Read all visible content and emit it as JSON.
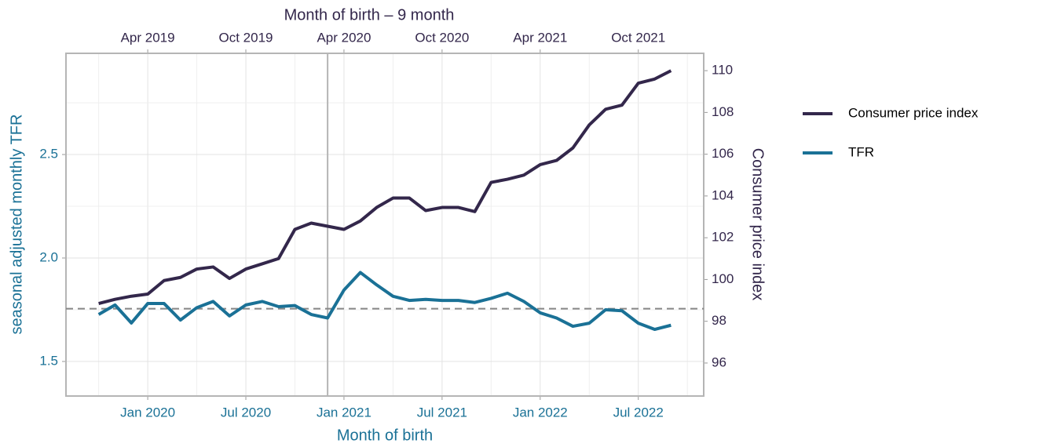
{
  "chart_data": {
    "type": "line",
    "x_title": "Month of birth",
    "x2_title": "Month of birth – 9 month",
    "y_title": "seasonal adjusted monthly TFR",
    "y2_title": "Consumer price index",
    "x": [
      "2019-10",
      "2019-11",
      "2019-12",
      "2020-01",
      "2020-02",
      "2020-03",
      "2020-04",
      "2020-05",
      "2020-06",
      "2020-07",
      "2020-08",
      "2020-09",
      "2020-10",
      "2020-11",
      "2020-12",
      "2021-01",
      "2021-02",
      "2021-03",
      "2021-04",
      "2021-05",
      "2021-06",
      "2021-07",
      "2021-08",
      "2021-09",
      "2021-10",
      "2021-11",
      "2021-12",
      "2022-01",
      "2022-02",
      "2022-03",
      "2022-04",
      "2022-05",
      "2022-06",
      "2022-07",
      "2022-08",
      "2022-09"
    ],
    "series": [
      {
        "name": "Consumer price index",
        "color": "#33274b",
        "axis": "y2",
        "values": [
          98.85,
          99.05,
          99.2,
          99.3,
          99.95,
          100.1,
          100.5,
          100.6,
          100.05,
          100.5,
          100.75,
          101.0,
          102.4,
          102.7,
          102.55,
          102.4,
          102.8,
          103.45,
          103.9,
          103.9,
          103.3,
          103.45,
          103.45,
          103.25,
          104.65,
          104.8,
          105.0,
          105.5,
          105.7,
          106.3,
          107.4,
          108.15,
          108.35,
          109.4,
          109.6,
          110.0
        ]
      },
      {
        "name": "TFR",
        "color": "#1a7196",
        "values": [
          1.727,
          1.773,
          1.686,
          1.78,
          1.78,
          1.7,
          1.76,
          1.79,
          1.72,
          1.773,
          1.79,
          1.765,
          1.77,
          1.727,
          1.71,
          1.845,
          1.93,
          1.87,
          1.815,
          1.795,
          1.8,
          1.795,
          1.795,
          1.785,
          1.805,
          1.83,
          1.79,
          1.735,
          1.71,
          1.67,
          1.685,
          1.75,
          1.745,
          1.685,
          1.655,
          1.675
        ]
      }
    ],
    "xlim": [
      "2019-08",
      "2022-11"
    ],
    "xticks": [
      {
        "value": "2020-01",
        "label": "Jan 2020"
      },
      {
        "value": "2020-07",
        "label": "Jul 2020"
      },
      {
        "value": "2021-01",
        "label": "Jan 2021"
      },
      {
        "value": "2021-07",
        "label": "Jul 2021"
      },
      {
        "value": "2022-01",
        "label": "Jan 2022"
      },
      {
        "value": "2022-07",
        "label": "Jul 2022"
      }
    ],
    "x2lim": [
      "2018-11",
      "2022-02"
    ],
    "x2ticks": [
      {
        "value": "2019-04",
        "label": "Apr 2019"
      },
      {
        "value": "2019-10",
        "label": "Oct 2019"
      },
      {
        "value": "2020-04",
        "label": "Apr 2020"
      },
      {
        "value": "2020-10",
        "label": "Oct 2020"
      },
      {
        "value": "2021-04",
        "label": "Apr 2021"
      },
      {
        "value": "2021-10",
        "label": "Oct 2021"
      }
    ],
    "ylim": [
      1.333,
      2.989
    ],
    "yticks": [
      1.5,
      {
        "value": 2,
        "label": "2.0"
      },
      2.5
    ],
    "y2lim": [
      94.42,
      110.83
    ],
    "y2ticks": [
      96,
      98,
      100,
      102,
      104,
      106,
      108,
      110
    ],
    "vline": "2020-12",
    "hline": 1.755,
    "grid": true,
    "legend": "right"
  }
}
